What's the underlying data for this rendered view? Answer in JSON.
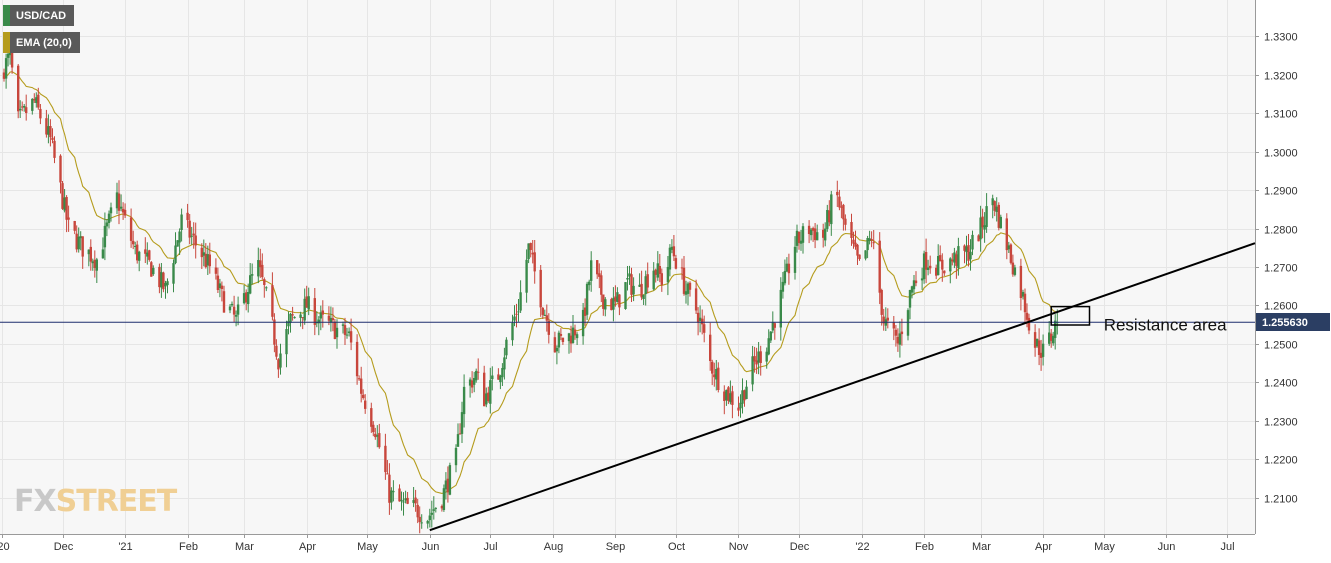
{
  "chart_data": {
    "type": "candlestick",
    "title": "USD/CAD",
    "y_range": [
      1.2005,
      1.3395
    ],
    "y_ticks": [
      1.21,
      1.22,
      1.23,
      1.24,
      1.25,
      1.26,
      1.27,
      1.28,
      1.29,
      1.3,
      1.31,
      1.32,
      1.33
    ],
    "y_tick_labels": [
      "1.2100",
      "1.2200",
      "1.2300",
      "1.2400",
      "1.2500",
      "1.2600",
      "1.2700",
      "1.2800",
      "1.2900",
      "1.3000",
      "1.3100",
      "1.3200",
      "1.3300"
    ],
    "x_labels": [
      "'20",
      "Dec",
      "'21",
      "Feb",
      "Mar",
      "Apr",
      "May",
      "Jun",
      "Jul",
      "Aug",
      "Sep",
      "Oct",
      "Nov",
      "Dec",
      "'22",
      "Feb",
      "Mar",
      "Apr",
      "May",
      "Jun",
      "Jul"
    ],
    "x_dates": [
      "2020-11-01",
      "2020-12-01",
      "2021-01-01",
      "2021-02-01",
      "2021-03-01",
      "2021-04-01",
      "2021-05-01",
      "2021-06-01",
      "2021-07-01",
      "2021-08-01",
      "2021-09-01",
      "2021-10-01",
      "2021-11-01",
      "2021-12-01",
      "2022-01-01",
      "2022-02-01",
      "2022-03-01",
      "2022-04-01",
      "2022-05-01",
      "2022-06-01",
      "2022-07-01"
    ],
    "x_range": [
      "2020-10-31",
      "2022-07-15"
    ],
    "current_price": 1.25563,
    "current_price_label": "1.255630",
    "price_path": [
      [
        "2020-10-31",
        1.32
      ],
      [
        "2020-11-05",
        1.325
      ],
      [
        "2020-11-09",
        1.308
      ],
      [
        "2020-11-17",
        1.313
      ],
      [
        "2020-11-25",
        1.303
      ],
      [
        "2020-12-04",
        1.28
      ],
      [
        "2020-12-11",
        1.275
      ],
      [
        "2020-12-18",
        1.272
      ],
      [
        "2020-12-28",
        1.288
      ],
      [
        "2021-01-06",
        1.274
      ],
      [
        "2021-01-14",
        1.27
      ],
      [
        "2021-01-21",
        1.264
      ],
      [
        "2021-01-29",
        1.282
      ],
      [
        "2021-02-05",
        1.276
      ],
      [
        "2021-02-12",
        1.27
      ],
      [
        "2021-02-18",
        1.262
      ],
      [
        "2021-02-25",
        1.256
      ],
      [
        "2021-03-03",
        1.265
      ],
      [
        "2021-03-08",
        1.27
      ],
      [
        "2021-03-13",
        1.26
      ],
      [
        "2021-03-18",
        1.246
      ],
      [
        "2021-03-24",
        1.256
      ],
      [
        "2021-04-01",
        1.26
      ],
      [
        "2021-04-08",
        1.256
      ],
      [
        "2021-04-15",
        1.254
      ],
      [
        "2021-04-22",
        1.252
      ],
      [
        "2021-04-28",
        1.238
      ],
      [
        "2021-05-05",
        1.228
      ],
      [
        "2021-05-12",
        1.211
      ],
      [
        "2021-05-18",
        1.208
      ],
      [
        "2021-05-25",
        1.207
      ],
      [
        "2021-05-31",
        1.205
      ],
      [
        "2021-06-07",
        1.21
      ],
      [
        "2021-06-14",
        1.22
      ],
      [
        "2021-06-18",
        1.238
      ],
      [
        "2021-06-24",
        1.242
      ],
      [
        "2021-06-28",
        1.236
      ],
      [
        "2021-07-05",
        1.242
      ],
      [
        "2021-07-10",
        1.252
      ],
      [
        "2021-07-15",
        1.26
      ],
      [
        "2021-07-20",
        1.275
      ],
      [
        "2021-07-27",
        1.26
      ],
      [
        "2021-08-02",
        1.25
      ],
      [
        "2021-08-09",
        1.252
      ],
      [
        "2021-08-16",
        1.256
      ],
      [
        "2021-08-20",
        1.27
      ],
      [
        "2021-08-26",
        1.262
      ],
      [
        "2021-09-01",
        1.26
      ],
      [
        "2021-09-07",
        1.266
      ],
      [
        "2021-09-13",
        1.264
      ],
      [
        "2021-09-20",
        1.27
      ],
      [
        "2021-09-25",
        1.266
      ],
      [
        "2021-09-29",
        1.275
      ],
      [
        "2021-10-06",
        1.264
      ],
      [
        "2021-10-12",
        1.258
      ],
      [
        "2021-10-18",
        1.245
      ],
      [
        "2021-10-25",
        1.238
      ],
      [
        "2021-11-01",
        1.234
      ],
      [
        "2021-11-08",
        1.244
      ],
      [
        "2021-11-15",
        1.25
      ],
      [
        "2021-11-22",
        1.262
      ],
      [
        "2021-11-29",
        1.276
      ],
      [
        "2021-12-06",
        1.28
      ],
      [
        "2021-12-13",
        1.278
      ],
      [
        "2021-12-19",
        1.29
      ],
      [
        "2021-12-24",
        1.28
      ],
      [
        "2021-12-31",
        1.27
      ],
      [
        "2022-01-06",
        1.278
      ],
      [
        "2022-01-12",
        1.256
      ],
      [
        "2022-01-19",
        1.25
      ],
      [
        "2022-01-26",
        1.265
      ],
      [
        "2022-02-02",
        1.272
      ],
      [
        "2022-02-09",
        1.27
      ],
      [
        "2022-02-16",
        1.272
      ],
      [
        "2022-02-23",
        1.274
      ],
      [
        "2022-03-01",
        1.28
      ],
      [
        "2022-03-07",
        1.288
      ],
      [
        "2022-03-14",
        1.276
      ],
      [
        "2022-03-21",
        1.264
      ],
      [
        "2022-03-28",
        1.25
      ],
      [
        "2022-04-01",
        1.248
      ],
      [
        "2022-04-05",
        1.252
      ],
      [
        "2022-04-08",
        1.256
      ]
    ],
    "series": [
      {
        "name": "USD/CAD",
        "kind": "candles",
        "up_color": "#3a8a4a",
        "down_color": "#c8463c"
      },
      {
        "name": "EMA (20,0)",
        "kind": "line",
        "color": "#b59c1d"
      }
    ],
    "ema_period": 20,
    "trendline": {
      "from": [
        "2021-06-01",
        1.2015
      ],
      "to": [
        "2022-07-15",
        1.2762
      ],
      "color": "#000000"
    },
    "horizontal_line": {
      "value": 1.25563,
      "color": "#1f2e6e"
    },
    "resistance_box": {
      "x0": "2022-04-05",
      "x1": "2022-04-24",
      "y0": 1.2549,
      "y1": 1.2597
    },
    "annotation": {
      "text": "Resistance area",
      "date": "2022-05-01",
      "value": 1.2556
    },
    "grid": true,
    "legend_position": "top-left"
  },
  "legend": {
    "symbol": "USD/CAD",
    "ema": "EMA (20,0)"
  },
  "watermark": {
    "fx": "FX",
    "street": "STREET"
  },
  "colors": {
    "plot_bg": "#f7f7f7",
    "grid": "#e6e6e6",
    "ema": "#b59c1d",
    "up": "#3a8a4a",
    "down": "#c8463c",
    "price_tag": "#2b3e63",
    "legend_bg": "#5a5a5a"
  }
}
